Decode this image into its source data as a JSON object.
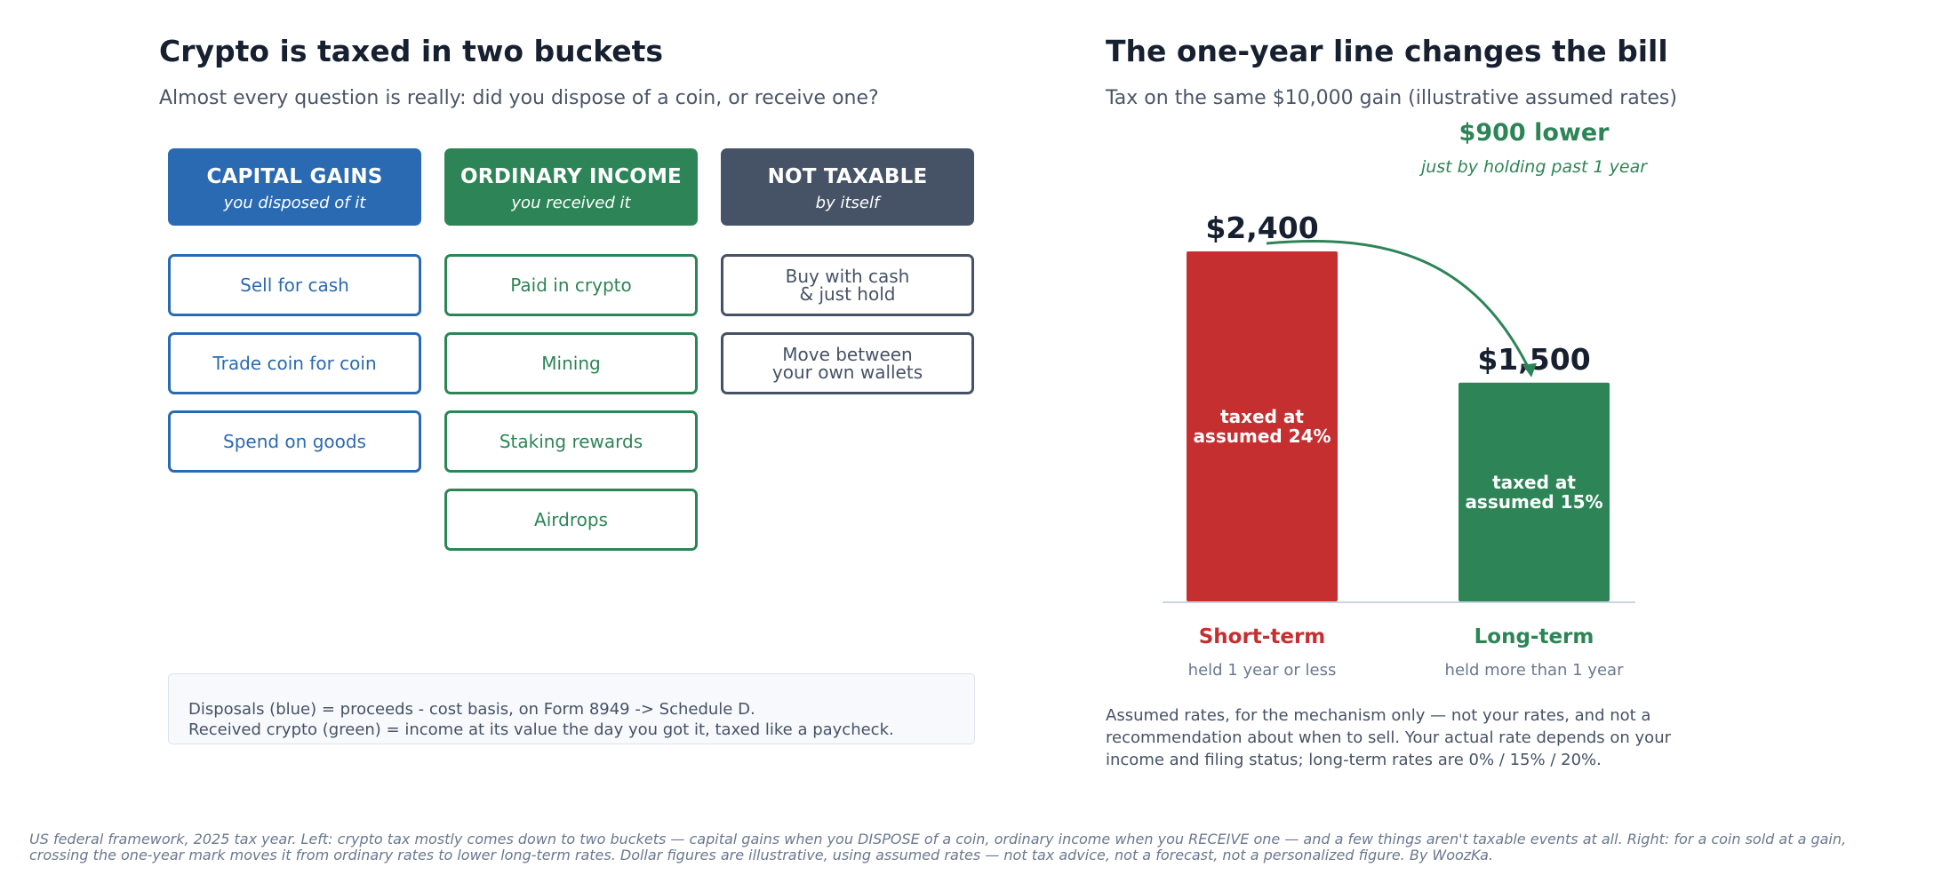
{
  "left": {
    "title": "Crypto is taxed in two buckets",
    "subtitle": "Almost every question is really: did you dispose of a coin, or receive one?",
    "columns": [
      {
        "title": "CAPITAL GAINS",
        "subtitle": "you disposed of it",
        "color": "#2a6ab2",
        "items": [
          "Sell for cash",
          "Trade coin for coin",
          "Spend on goods"
        ]
      },
      {
        "title": "ORDINARY INCOME",
        "subtitle": "you received it",
        "color": "#2d8557",
        "items": [
          "Paid in crypto",
          "Mining",
          "Staking rewards",
          "Airdrops"
        ]
      },
      {
        "title": "NOT TAXABLE",
        "subtitle": "by itself",
        "color": "#465265",
        "items": [
          "Buy with cash\n& just hold",
          "Move between\nyour own wallets"
        ]
      }
    ],
    "note": "Disposals (blue) = proceeds - cost basis, on Form 8949 -> Schedule D.\nReceived crypto (green) = income at its value the day you got it, taxed like a paycheck."
  },
  "right": {
    "title": "The one-year line changes the bill",
    "subtitle": "Tax on the same $10,000 gain (illustrative assumed rates)",
    "assumptions": "Assumed rates, for the mechanism only — not your rates, and not a\nrecommendation about when to sell. Your actual rate depends on your\nincome and filing status; long-term rates are 0% / 15% / 20%."
  },
  "chart_data": {
    "type": "bar",
    "title": "The one-year line changes the bill",
    "subtitle": "Tax on the same $10,000 gain (illustrative assumed rates)",
    "categories": [
      "Short-term",
      "Long-term"
    ],
    "category_notes": [
      "held 1 year or less",
      "held more than 1 year"
    ],
    "values": [
      2400,
      1500
    ],
    "value_labels": [
      "$2,400",
      "$1,500"
    ],
    "bar_labels": [
      "taxed at\nassumed 24%",
      "taxed at\nassumed 15%"
    ],
    "colors": [
      "#c62f30",
      "#2d8557"
    ],
    "annotation": {
      "title": "$900 lower",
      "subtitle": "just by holding past 1 year",
      "color": "#2d8557"
    },
    "ylim": [
      0,
      2400
    ],
    "grid": false,
    "legend": "none"
  },
  "footer": "US federal framework, 2025 tax year. Left: crypto tax mostly comes down to two buckets — capital gains when you DISPOSE of a coin, ordinary income when you RECEIVE one — and a few things aren't taxable events at all. Right: for a coin sold at a gain,\ncrossing the one-year mark moves it from ordinary rates to lower long-term rates. Dollar figures are illustrative, using assumed rates — not tax advice, not a forecast, not a personalized figure. By WoozKa."
}
